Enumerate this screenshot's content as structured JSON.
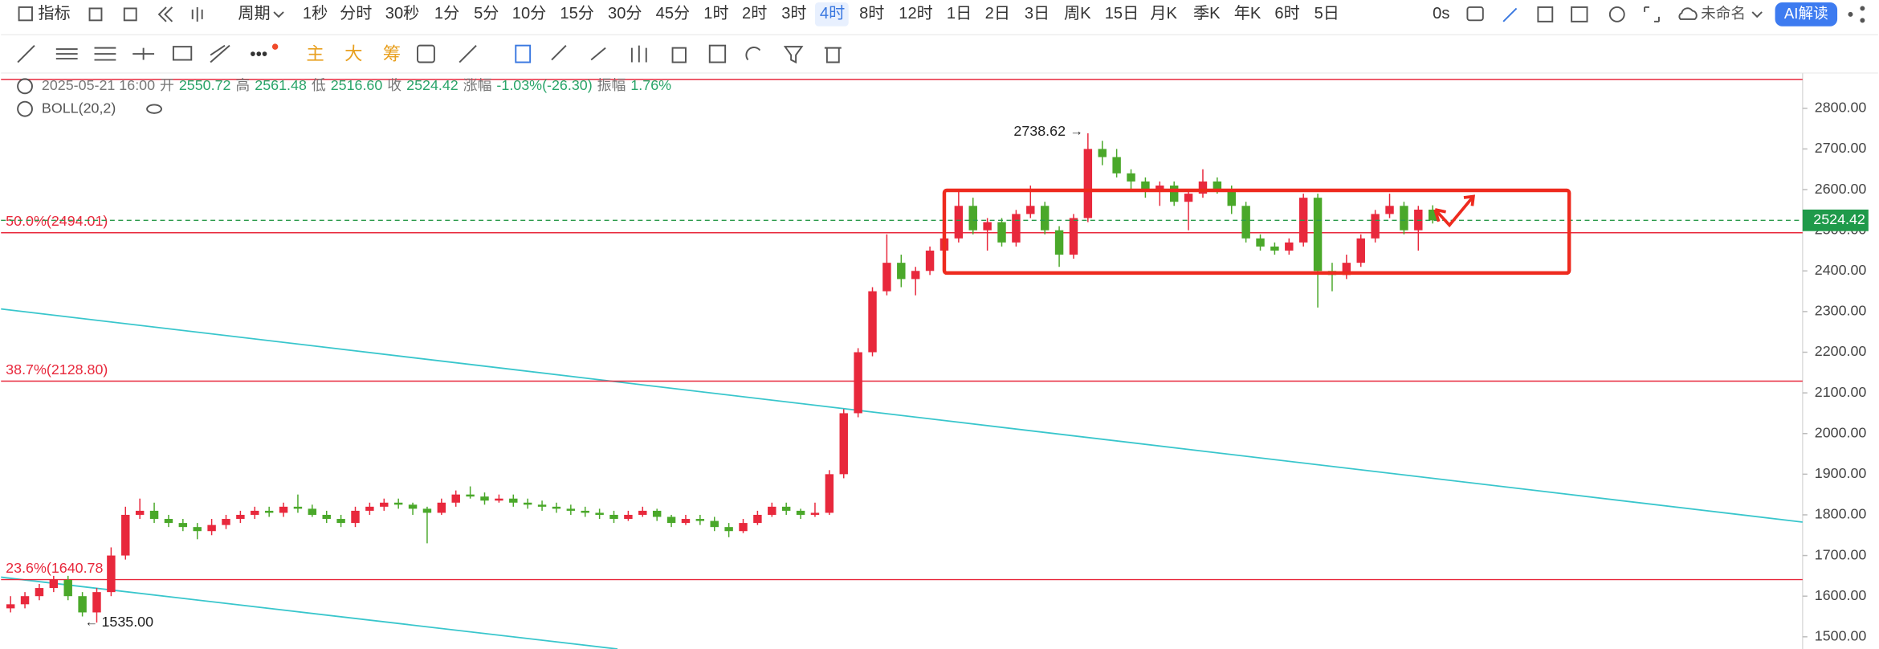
{
  "toolbar": {
    "indicator": "指标",
    "period": "周期",
    "periods": [
      "1秒",
      "分时",
      "30秒",
      "1分",
      "5分",
      "10分",
      "15分",
      "30分",
      "45分",
      "1时",
      "2时",
      "3时",
      "4时",
      "8时",
      "12时",
      "1日",
      "2日",
      "3日",
      "周K",
      "15日",
      "月K",
      "季K",
      "年K",
      "6时",
      "5日"
    ],
    "active_period": "4时",
    "timer": "0s",
    "layout_name": "未命名",
    "ai_button": "AI解读",
    "tools": [
      "主",
      "大",
      "筹"
    ]
  },
  "chart_data": {
    "type": "candlestick",
    "info": {
      "datetime": "2025-05-21 16:00",
      "open_label": "开",
      "open": "2550.72",
      "high_label": "高",
      "high": "2561.48",
      "low_label": "低",
      "low": "2516.60",
      "close_label": "收",
      "close": "2524.42",
      "change_label": "涨幅",
      "change": "-1.03%(-26.30)",
      "amplitude_label": "振幅",
      "amplitude": "1.76%",
      "indicator": "BOLL(20,2)"
    },
    "up_color": "#e8283c",
    "down_color": "#4aa82a",
    "ylim": [
      1470,
      2872
    ],
    "yticks": [
      {
        "value": 2800,
        "label": "2800.00"
      },
      {
        "value": 2700,
        "label": "2700.00"
      },
      {
        "value": 2600,
        "label": "2600.00"
      },
      {
        "value": 2500,
        "label": "2500.00"
      },
      {
        "value": 2400,
        "label": "2400.00"
      },
      {
        "value": 2300,
        "label": "2300.00"
      },
      {
        "value": 2200,
        "label": "2200.00"
      },
      {
        "value": 2100,
        "label": "2100.00"
      },
      {
        "value": 2000,
        "label": "2000.00"
      },
      {
        "value": 1900,
        "label": "1900.00"
      },
      {
        "value": 1800,
        "label": "1800.00"
      },
      {
        "value": 1700,
        "label": "1700.00"
      },
      {
        "value": 1600,
        "label": "1600.00"
      },
      {
        "value": 1500,
        "label": "1500.00"
      }
    ],
    "levels": [
      {
        "value": 2871
      },
      {
        "value": 2494.01,
        "label": "50.0%(2494.01)"
      },
      {
        "value": 2128.8,
        "label": "38.7%(2128.80)"
      },
      {
        "value": 1640.78,
        "label": "23.6%(1640.78"
      }
    ],
    "last_price": 2524.42,
    "high_mark": 2738.62,
    "low_mark": {
      "value": 1535,
      "label": "1535.00"
    },
    "candles": [
      [
        1570,
        1600,
        1560,
        1580
      ],
      [
        1580,
        1610,
        1570,
        1600
      ],
      [
        1600,
        1630,
        1590,
        1620
      ],
      [
        1620,
        1650,
        1610,
        1640
      ],
      [
        1640,
        1650,
        1590,
        1600
      ],
      [
        1600,
        1610,
        1550,
        1560
      ],
      [
        1560,
        1620,
        1535,
        1610
      ],
      [
        1610,
        1720,
        1600,
        1700
      ],
      [
        1700,
        1820,
        1690,
        1800
      ],
      [
        1800,
        1840,
        1790,
        1810
      ],
      [
        1810,
        1830,
        1780,
        1790
      ],
      [
        1790,
        1800,
        1770,
        1780
      ],
      [
        1780,
        1790,
        1760,
        1770
      ],
      [
        1770,
        1780,
        1740,
        1760
      ],
      [
        1760,
        1790,
        1750,
        1775
      ],
      [
        1775,
        1800,
        1765,
        1790
      ],
      [
        1790,
        1810,
        1780,
        1800
      ],
      [
        1800,
        1820,
        1790,
        1810
      ],
      [
        1810,
        1820,
        1795,
        1805
      ],
      [
        1805,
        1830,
        1795,
        1820
      ],
      [
        1820,
        1850,
        1805,
        1815
      ],
      [
        1815,
        1825,
        1795,
        1800
      ],
      [
        1800,
        1810,
        1780,
        1790
      ],
      [
        1790,
        1800,
        1770,
        1780
      ],
      [
        1780,
        1820,
        1770,
        1810
      ],
      [
        1810,
        1830,
        1800,
        1820
      ],
      [
        1820,
        1840,
        1810,
        1830
      ],
      [
        1830,
        1840,
        1815,
        1825
      ],
      [
        1825,
        1830,
        1800,
        1815
      ],
      [
        1815,
        1820,
        1730,
        1805
      ],
      [
        1805,
        1840,
        1800,
        1830
      ],
      [
        1830,
        1860,
        1820,
        1850
      ],
      [
        1850,
        1870,
        1840,
        1845
      ],
      [
        1845,
        1855,
        1825,
        1835
      ],
      [
        1835,
        1850,
        1830,
        1840
      ],
      [
        1840,
        1850,
        1820,
        1830
      ],
      [
        1830,
        1840,
        1815,
        1825
      ],
      [
        1825,
        1835,
        1810,
        1820
      ],
      [
        1820,
        1830,
        1805,
        1815
      ],
      [
        1815,
        1825,
        1800,
        1810
      ],
      [
        1810,
        1820,
        1795,
        1805
      ],
      [
        1805,
        1815,
        1790,
        1800
      ],
      [
        1800,
        1810,
        1780,
        1790
      ],
      [
        1790,
        1810,
        1785,
        1800
      ],
      [
        1800,
        1820,
        1795,
        1810
      ],
      [
        1810,
        1815,
        1785,
        1795
      ],
      [
        1795,
        1800,
        1770,
        1780
      ],
      [
        1780,
        1800,
        1775,
        1790
      ],
      [
        1790,
        1800,
        1775,
        1785
      ],
      [
        1785,
        1795,
        1760,
        1770
      ],
      [
        1770,
        1780,
        1745,
        1760
      ],
      [
        1760,
        1790,
        1755,
        1780
      ],
      [
        1780,
        1810,
        1775,
        1800
      ],
      [
        1800,
        1830,
        1795,
        1820
      ],
      [
        1820,
        1830,
        1800,
        1810
      ],
      [
        1810,
        1815,
        1790,
        1800
      ],
      [
        1800,
        1830,
        1795,
        1805
      ],
      [
        1805,
        1910,
        1800,
        1900
      ],
      [
        1900,
        2060,
        1890,
        2050
      ],
      [
        2050,
        2210,
        2040,
        2200
      ],
      [
        2200,
        2360,
        2190,
        2350
      ],
      [
        2350,
        2490,
        2340,
        2420
      ],
      [
        2420,
        2440,
        2360,
        2380
      ],
      [
        2380,
        2410,
        2340,
        2400
      ],
      [
        2400,
        2460,
        2390,
        2450
      ],
      [
        2450,
        2490,
        2430,
        2480
      ],
      [
        2480,
        2600,
        2470,
        2560
      ],
      [
        2560,
        2580,
        2490,
        2500
      ],
      [
        2500,
        2530,
        2450,
        2520
      ],
      [
        2520,
        2530,
        2460,
        2470
      ],
      [
        2470,
        2550,
        2460,
        2540
      ],
      [
        2540,
        2610,
        2530,
        2560
      ],
      [
        2560,
        2570,
        2490,
        2500
      ],
      [
        2500,
        2510,
        2410,
        2440
      ],
      [
        2440,
        2540,
        2430,
        2530
      ],
      [
        2530,
        2738.62,
        2520,
        2700
      ],
      [
        2700,
        2720,
        2660,
        2680
      ],
      [
        2680,
        2700,
        2630,
        2640
      ],
      [
        2640,
        2650,
        2600,
        2620
      ],
      [
        2620,
        2630,
        2580,
        2600
      ],
      [
        2600,
        2620,
        2560,
        2610
      ],
      [
        2610,
        2620,
        2560,
        2570
      ],
      [
        2570,
        2600,
        2500,
        2590
      ],
      [
        2590,
        2650,
        2580,
        2620
      ],
      [
        2620,
        2630,
        2590,
        2600
      ],
      [
        2600,
        2610,
        2540,
        2560
      ],
      [
        2560,
        2570,
        2470,
        2480
      ],
      [
        2480,
        2490,
        2450,
        2460
      ],
      [
        2460,
        2470,
        2440,
        2450
      ],
      [
        2450,
        2480,
        2440,
        2470
      ],
      [
        2470,
        2590,
        2460,
        2580
      ],
      [
        2580,
        2590,
        2310,
        2400
      ],
      [
        2400,
        2420,
        2350,
        2390
      ],
      [
        2390,
        2440,
        2380,
        2420
      ],
      [
        2420,
        2490,
        2410,
        2480
      ],
      [
        2480,
        2550,
        2470,
        2540
      ],
      [
        2540,
        2590,
        2530,
        2560
      ],
      [
        2560,
        2570,
        2490,
        2500
      ],
      [
        2500,
        2560,
        2450,
        2550.72
      ],
      [
        2550.72,
        2561.48,
        2516.6,
        2524.42
      ]
    ]
  }
}
